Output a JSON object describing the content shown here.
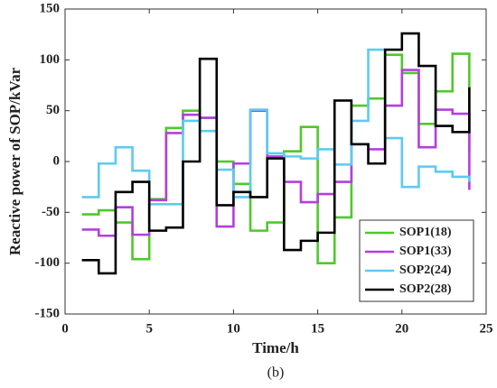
{
  "chart_data": {
    "type": "step",
    "xlabel": "Time/h",
    "ylabel": "Reactive power of SOP/kVar",
    "caption": "(b)",
    "x": [
      1,
      2,
      3,
      4,
      5,
      6,
      7,
      8,
      9,
      10,
      11,
      12,
      13,
      14,
      15,
      16,
      17,
      18,
      19,
      20,
      21,
      22,
      23,
      24
    ],
    "series": [
      {
        "name": "SOP1(18)",
        "color": "#4fc92a",
        "values": [
          -52,
          -48,
          -60,
          -96,
          -37,
          33,
          50,
          43,
          0,
          -22,
          -68,
          -60,
          10,
          34,
          -100,
          -55,
          55,
          62,
          105,
          87,
          37,
          69,
          106,
          10
        ]
      },
      {
        "name": "SOP1(33)",
        "color": "#b43ee0",
        "values": [
          -67,
          -73,
          -45,
          -72,
          -38,
          28,
          46,
          43,
          -64,
          -2,
          50,
          5,
          -20,
          -40,
          -32,
          -20,
          17,
          12,
          55,
          90,
          14,
          51,
          47,
          -28
        ]
      },
      {
        "name": "SOP2(24)",
        "color": "#5ccbf0",
        "values": [
          -35,
          -2,
          14,
          -9,
          -42,
          -42,
          40,
          30,
          -8,
          -35,
          51,
          8,
          5,
          3,
          12,
          -3,
          40,
          110,
          23,
          -25,
          -5,
          -10,
          -15,
          -20
        ]
      },
      {
        "name": "SOP2(28)",
        "color": "#000000",
        "values": [
          -97,
          -110,
          -30,
          -20,
          -68,
          -65,
          0,
          101,
          -43,
          -30,
          -35,
          3,
          -87,
          -78,
          -70,
          60,
          17,
          -2,
          110,
          126,
          94,
          35,
          29,
          73
        ]
      }
    ],
    "xlim": [
      0,
      25
    ],
    "xticks": [
      0,
      5,
      10,
      15,
      20,
      25
    ],
    "ylim": [
      -150,
      150
    ],
    "yticks": [
      -150,
      -100,
      -50,
      0,
      50,
      100,
      150
    ],
    "legend": "lower right"
  }
}
